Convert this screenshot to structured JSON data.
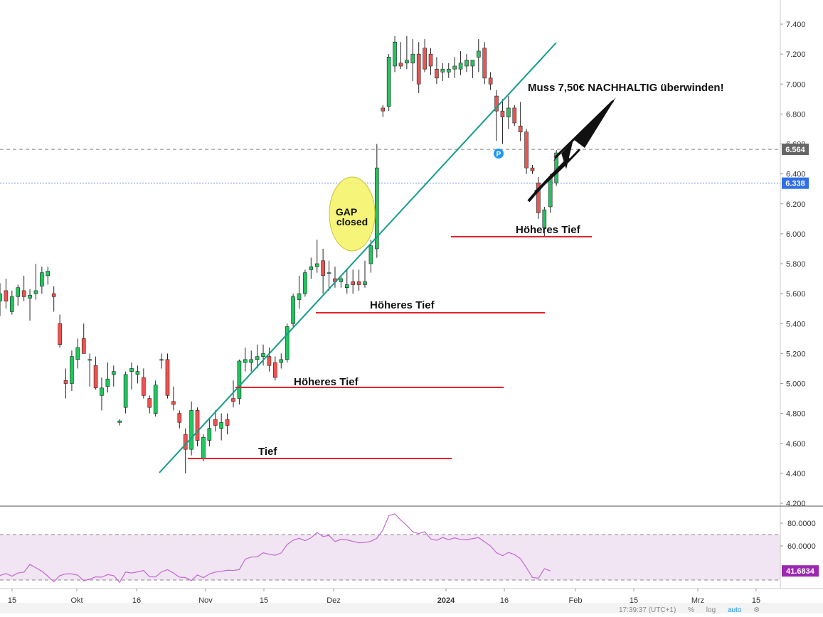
{
  "chart_data": [
    {
      "type": "candlestick",
      "price_axis": {
        "ylim": [
          4.2,
          7.5
        ],
        "ticks": [
          "4.200",
          "4.400",
          "4.600",
          "4.800",
          "5.000",
          "5.200",
          "5.400",
          "5.600",
          "5.800",
          "6.000",
          "6.200",
          "6.400",
          "6.600",
          "6.800",
          "7.000",
          "7.200",
          "7.400"
        ],
        "grid": false
      },
      "time_axis": {
        "ticks": [
          "15",
          "Okt",
          "16",
          "Nov",
          "15",
          "Dez",
          "2024",
          "16",
          "Feb",
          "15",
          "Mrz",
          "15"
        ]
      },
      "price_labels": [
        {
          "value": "6.564",
          "y": 6.564,
          "color": "#666666",
          "line": "dashed"
        },
        {
          "value": "6.338",
          "y": 6.338,
          "color": "#2f6ee6",
          "line": "dotted"
        }
      ],
      "candles": [
        {
          "d": "2023-09-11",
          "o": 5.55,
          "h": 5.67,
          "l": 5.45,
          "c": 5.6
        },
        {
          "d": "2023-09-12",
          "o": 5.62,
          "h": 5.7,
          "l": 5.5,
          "c": 5.55
        },
        {
          "d": "2023-09-13",
          "o": 5.48,
          "h": 5.62,
          "l": 5.46,
          "c": 5.58
        },
        {
          "d": "2023-09-14",
          "o": 5.58,
          "h": 5.66,
          "l": 5.52,
          "c": 5.64
        },
        {
          "d": "2023-09-15",
          "o": 5.62,
          "h": 5.72,
          "l": 5.55,
          "c": 5.58
        },
        {
          "d": "2023-09-18",
          "o": 5.57,
          "h": 5.63,
          "l": 5.42,
          "c": 5.59
        },
        {
          "d": "2023-09-19",
          "o": 5.6,
          "h": 5.8,
          "l": 5.56,
          "c": 5.62
        },
        {
          "d": "2023-09-20",
          "o": 5.65,
          "h": 5.78,
          "l": 5.6,
          "c": 5.74
        },
        {
          "d": "2023-09-21",
          "o": 5.72,
          "h": 5.78,
          "l": 5.66,
          "c": 5.75
        },
        {
          "d": "2023-09-22",
          "o": 5.6,
          "h": 5.65,
          "l": 5.48,
          "c": 5.58
        },
        {
          "d": "2023-09-25",
          "o": 5.4,
          "h": 5.46,
          "l": 5.24,
          "c": 5.26
        },
        {
          "d": "2023-09-26",
          "o": 5.02,
          "h": 5.1,
          "l": 4.9,
          "c": 5.0
        },
        {
          "d": "2023-09-27",
          "o": 5.0,
          "h": 5.22,
          "l": 4.95,
          "c": 5.18
        },
        {
          "d": "2023-09-28",
          "o": 5.16,
          "h": 5.3,
          "l": 5.1,
          "c": 5.24
        },
        {
          "d": "2023-09-29",
          "o": 5.3,
          "h": 5.4,
          "l": 5.22,
          "c": 5.2
        },
        {
          "d": "2023-10-02",
          "o": 5.16,
          "h": 5.2,
          "l": 4.98,
          "c": 5.16
        },
        {
          "d": "2023-10-03",
          "o": 5.12,
          "h": 5.18,
          "l": 4.96,
          "c": 4.97
        },
        {
          "d": "2023-10-04",
          "o": 4.92,
          "h": 5.04,
          "l": 4.82,
          "c": 4.97
        },
        {
          "d": "2023-10-05",
          "o": 4.98,
          "h": 5.14,
          "l": 4.94,
          "c": 5.03
        },
        {
          "d": "2023-10-06",
          "o": 5.06,
          "h": 5.12,
          "l": 4.98,
          "c": 5.08
        },
        {
          "d": "2023-10-09",
          "o": 4.74,
          "h": 4.76,
          "l": 4.72,
          "c": 4.75
        },
        {
          "d": "2023-10-10",
          "o": 4.84,
          "h": 5.08,
          "l": 4.8,
          "c": 5.06
        },
        {
          "d": "2023-10-11",
          "o": 5.08,
          "h": 5.14,
          "l": 4.96,
          "c": 5.1
        },
        {
          "d": "2023-10-12",
          "o": 5.06,
          "h": 5.12,
          "l": 5.0,
          "c": 5.08
        },
        {
          "d": "2023-10-13",
          "o": 5.04,
          "h": 5.1,
          "l": 4.9,
          "c": 4.92
        },
        {
          "d": "2023-10-16",
          "o": 4.9,
          "h": 4.92,
          "l": 4.8,
          "c": 4.84
        },
        {
          "d": "2023-10-17",
          "o": 4.8,
          "h": 5.02,
          "l": 4.78,
          "c": 4.99
        },
        {
          "d": "2023-10-18",
          "o": 5.16,
          "h": 5.2,
          "l": 5.1,
          "c": 5.16
        },
        {
          "d": "2023-10-19",
          "o": 5.16,
          "h": 5.2,
          "l": 4.9,
          "c": 4.92
        },
        {
          "d": "2023-10-20",
          "o": 4.88,
          "h": 4.98,
          "l": 4.82,
          "c": 4.86
        },
        {
          "d": "2023-10-23",
          "o": 4.8,
          "h": 4.82,
          "l": 4.7,
          "c": 4.74
        },
        {
          "d": "2023-10-24",
          "o": 4.66,
          "h": 4.7,
          "l": 4.4,
          "c": 4.56
        },
        {
          "d": "2023-10-25",
          "o": 4.56,
          "h": 4.88,
          "l": 4.52,
          "c": 4.82
        },
        {
          "d": "2023-10-26",
          "o": 4.82,
          "h": 4.84,
          "l": 4.58,
          "c": 4.62
        },
        {
          "d": "2023-10-27",
          "o": 4.5,
          "h": 4.66,
          "l": 4.48,
          "c": 4.64
        },
        {
          "d": "2023-10-30",
          "o": 4.62,
          "h": 4.76,
          "l": 4.58,
          "c": 4.7
        },
        {
          "d": "2023-10-31",
          "o": 4.76,
          "h": 4.82,
          "l": 4.68,
          "c": 4.72
        },
        {
          "d": "2023-11-01",
          "o": 4.7,
          "h": 4.8,
          "l": 4.62,
          "c": 4.74
        },
        {
          "d": "2023-11-02",
          "o": 4.76,
          "h": 4.8,
          "l": 4.66,
          "c": 4.72
        },
        {
          "d": "2023-11-03",
          "o": 4.9,
          "h": 5.02,
          "l": 4.84,
          "c": 4.88
        },
        {
          "d": "2023-11-06",
          "o": 4.9,
          "h": 5.16,
          "l": 4.86,
          "c": 5.15
        },
        {
          "d": "2023-11-07",
          "o": 5.14,
          "h": 5.24,
          "l": 5.08,
          "c": 5.16
        },
        {
          "d": "2023-11-08",
          "o": 5.14,
          "h": 5.22,
          "l": 5.08,
          "c": 5.16
        },
        {
          "d": "2023-11-09",
          "o": 5.16,
          "h": 5.26,
          "l": 5.1,
          "c": 5.18
        },
        {
          "d": "2023-11-10",
          "o": 5.18,
          "h": 5.26,
          "l": 5.12,
          "c": 5.2
        },
        {
          "d": "2023-11-13",
          "o": 5.18,
          "h": 5.24,
          "l": 5.08,
          "c": 5.12
        },
        {
          "d": "2023-11-14",
          "o": 5.14,
          "h": 5.18,
          "l": 5.02,
          "c": 5.04
        },
        {
          "d": "2023-11-15",
          "o": 5.14,
          "h": 5.2,
          "l": 5.1,
          "c": 5.16
        },
        {
          "d": "2023-11-16",
          "o": 5.16,
          "h": 5.4,
          "l": 5.14,
          "c": 5.38
        },
        {
          "d": "2023-11-17",
          "o": 5.4,
          "h": 5.6,
          "l": 5.38,
          "c": 5.58
        },
        {
          "d": "2023-11-20",
          "o": 5.56,
          "h": 5.72,
          "l": 5.5,
          "c": 5.6
        },
        {
          "d": "2023-11-21",
          "o": 5.6,
          "h": 5.76,
          "l": 5.58,
          "c": 5.74
        },
        {
          "d": "2023-11-22",
          "o": 5.76,
          "h": 5.84,
          "l": 5.7,
          "c": 5.78
        },
        {
          "d": "2023-11-23",
          "o": 5.78,
          "h": 5.96,
          "l": 5.74,
          "c": 5.8
        },
        {
          "d": "2023-11-24",
          "o": 5.82,
          "h": 5.9,
          "l": 5.6,
          "c": 5.72
        },
        {
          "d": "2023-11-27",
          "o": 5.74,
          "h": 5.82,
          "l": 5.62,
          "c": 5.74
        },
        {
          "d": "2023-11-28",
          "o": 5.7,
          "h": 5.78,
          "l": 5.64,
          "c": 5.68
        },
        {
          "d": "2023-11-29",
          "o": 5.68,
          "h": 5.72,
          "l": 5.64,
          "c": 5.7
        },
        {
          "d": "2023-11-30",
          "o": 5.64,
          "h": 5.76,
          "l": 5.6,
          "c": 5.66
        },
        {
          "d": "2023-12-01",
          "o": 5.68,
          "h": 5.76,
          "l": 5.6,
          "c": 5.66
        },
        {
          "d": "2023-12-04",
          "o": 5.68,
          "h": 5.76,
          "l": 5.62,
          "c": 5.66
        },
        {
          "d": "2023-12-05",
          "o": 5.66,
          "h": 5.82,
          "l": 5.64,
          "c": 5.68
        },
        {
          "d": "2023-12-06",
          "o": 5.8,
          "h": 5.96,
          "l": 5.74,
          "c": 5.92
        },
        {
          "d": "2023-12-07",
          "o": 5.9,
          "h": 6.6,
          "l": 5.84,
          "c": 6.44
        },
        {
          "d": "2023-12-08",
          "o": 6.84,
          "h": 6.86,
          "l": 6.78,
          "c": 6.82
        },
        {
          "d": "2023-12-11",
          "o": 6.85,
          "h": 7.2,
          "l": 6.82,
          "c": 7.18
        },
        {
          "d": "2023-12-12",
          "o": 7.12,
          "h": 7.32,
          "l": 7.08,
          "c": 7.28
        },
        {
          "d": "2023-12-13",
          "o": 7.14,
          "h": 7.28,
          "l": 7.1,
          "c": 7.12
        },
        {
          "d": "2023-12-14",
          "o": 7.14,
          "h": 7.32,
          "l": 7.1,
          "c": 7.16
        },
        {
          "d": "2023-12-15",
          "o": 7.14,
          "h": 7.3,
          "l": 7.02,
          "c": 7.2
        },
        {
          "d": "2023-12-18",
          "o": 7.2,
          "h": 7.28,
          "l": 6.94,
          "c": 7.0
        },
        {
          "d": "2023-12-19",
          "o": 7.24,
          "h": 7.3,
          "l": 7.08,
          "c": 7.1
        },
        {
          "d": "2023-12-20",
          "o": 7.2,
          "h": 7.24,
          "l": 7.06,
          "c": 7.12
        },
        {
          "d": "2023-12-21",
          "o": 7.1,
          "h": 7.18,
          "l": 7.0,
          "c": 7.04
        },
        {
          "d": "2023-12-22",
          "o": 7.08,
          "h": 7.14,
          "l": 7.02,
          "c": 7.1
        },
        {
          "d": "2023-12-27",
          "o": 7.08,
          "h": 7.14,
          "l": 7.04,
          "c": 7.1
        },
        {
          "d": "2023-12-28",
          "o": 7.1,
          "h": 7.18,
          "l": 7.04,
          "c": 7.12
        },
        {
          "d": "2023-12-29",
          "o": 7.1,
          "h": 7.22,
          "l": 7.06,
          "c": 7.14
        },
        {
          "d": "2024-01-02",
          "o": 7.12,
          "h": 7.2,
          "l": 7.08,
          "c": 7.16
        },
        {
          "d": "2024-01-03",
          "o": 7.12,
          "h": 7.16,
          "l": 7.04,
          "c": 7.16
        },
        {
          "d": "2024-01-04",
          "o": 7.18,
          "h": 7.3,
          "l": 7.08,
          "c": 7.22
        },
        {
          "d": "2024-01-05",
          "o": 7.24,
          "h": 7.28,
          "l": 7.0,
          "c": 7.04
        },
        {
          "d": "2024-01-08",
          "o": 7.04,
          "h": 7.08,
          "l": 6.96,
          "c": 7.0
        },
        {
          "d": "2024-01-09",
          "o": 6.92,
          "h": 6.96,
          "l": 6.62,
          "c": 6.82
        },
        {
          "d": "2024-01-10",
          "o": 6.82,
          "h": 6.9,
          "l": 6.6,
          "c": 6.78
        },
        {
          "d": "2024-01-11",
          "o": 6.78,
          "h": 6.92,
          "l": 6.7,
          "c": 6.84
        },
        {
          "d": "2024-01-12",
          "o": 6.84,
          "h": 6.86,
          "l": 6.72,
          "c": 6.74
        },
        {
          "d": "2024-01-15",
          "o": 6.72,
          "h": 6.88,
          "l": 6.62,
          "c": 6.68
        },
        {
          "d": "2024-01-16",
          "o": 6.68,
          "h": 6.7,
          "l": 6.4,
          "c": 6.44
        },
        {
          "d": "2024-01-17",
          "o": 6.44,
          "h": 6.46,
          "l": 6.4,
          "c": 6.42
        },
        {
          "d": "2024-01-18",
          "o": 6.34,
          "h": 6.38,
          "l": 6.1,
          "c": 6.14
        },
        {
          "d": "2024-01-19",
          "o": 6.04,
          "h": 6.18,
          "l": 5.98,
          "c": 6.16
        },
        {
          "d": "2024-01-22",
          "o": 6.18,
          "h": 6.4,
          "l": 6.14,
          "c": 6.38
        },
        {
          "d": "2024-01-23",
          "o": 6.34,
          "h": 6.56,
          "l": 6.32,
          "c": 6.54
        }
      ],
      "colors": {
        "up": "#26a69a",
        "up_body": "#22c55e",
        "down": "#ef5350",
        "trendline": "#139d8a",
        "support": "#e8202a"
      }
    },
    {
      "type": "line",
      "ylim": [
        20,
        90
      ],
      "ticks": [
        "80.0000",
        "60.0000"
      ],
      "bands": [
        30,
        70
      ],
      "last_value": "41.6834",
      "series_color": "#9c27b0",
      "values": [
        34.0,
        35.7,
        33.4,
        36.2,
        36.9,
        43.7,
        40.8,
        37.8,
        33.3,
        28.4,
        33.9,
        35.4,
        35.4,
        34.3,
        29.3,
        30.7,
        32.8,
        32.5,
        34.8,
        33.9,
        28.0,
        37.0,
        36.2,
        37.2,
        38.4,
        32.9,
        32.7,
        37.2,
        39.1,
        36.2,
        32.5,
        32.2,
        29.5,
        34.5,
        32.1,
        35.3,
        37.0,
        37.7,
        38.6,
        38.4,
        39.2,
        48.4,
        50.2,
        50.4,
        54.0,
        52.6,
        51.8,
        53.8,
        61.2,
        65.0,
        66.7,
        64.6,
        67.1,
        71.8,
        68.3,
        69.2,
        63.9,
        65.7,
        65.3,
        64.0,
        62.7,
        63.0,
        64.1,
        66.7,
        74.0,
        86.6,
        88.2,
        82.7,
        78.0,
        72.4,
        70.9,
        72.5,
        66.1,
        64.9,
        67.4,
        65.5,
        67.1,
        65.6,
        65.4,
        66.4,
        67.3,
        63.7,
        59.9,
        54.0,
        51.4,
        54.3,
        52.4,
        48.7,
        40.8,
        32.3,
        31.6,
        40.0,
        38.0
      ]
    }
  ],
  "annotations": {
    "headline": "Muss 7,50€ NACHHALTIG überwinden!",
    "gap_line1": "GAP",
    "gap_line2": "closed",
    "tief": "Tief",
    "hoeheres_tief_1": "Höheres Tief",
    "hoeheres_tief_2": "Höheres Tief",
    "hoeheres_tief_3": "Höheres Tief",
    "marker": "P"
  },
  "status_bar": {
    "time": "17:39:37 (UTC+1)",
    "percent": "%",
    "log": "log",
    "auto": "auto"
  }
}
